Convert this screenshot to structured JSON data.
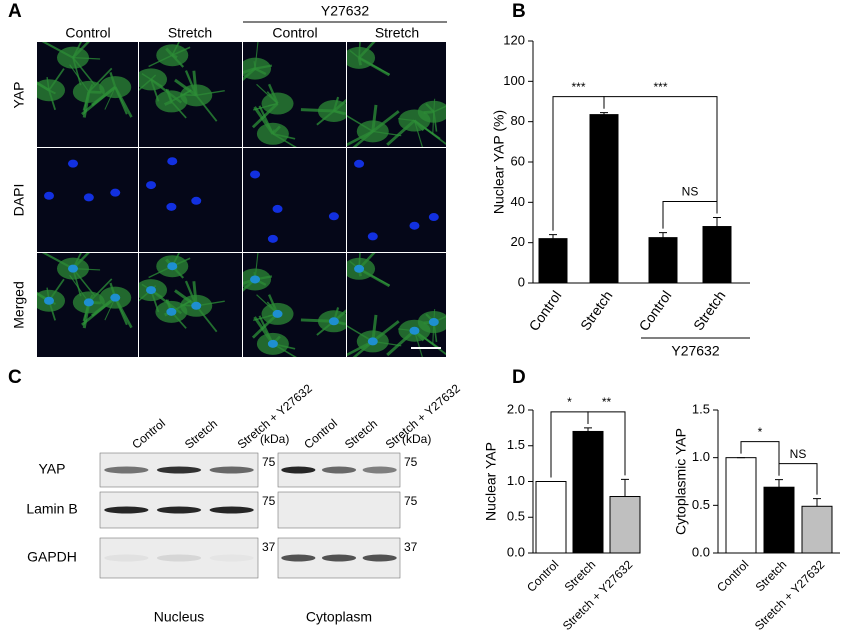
{
  "figure": {
    "panel_letters": [
      "A",
      "B",
      "C",
      "D"
    ],
    "panel_a": {
      "columns": [
        "Control",
        "Stretch",
        "Control",
        "Stretch"
      ],
      "group": "Y27632",
      "rows": [
        "YAP",
        "DAPI",
        "Merged"
      ]
    },
    "panel_c": {
      "proteins": [
        "YAP",
        "Lamin B",
        "GAPDH"
      ],
      "unit": "(kDa)",
      "blots": [
        {
          "name": "Nucleus",
          "lanes": [
            "Control",
            "Stretch",
            "Stretch + Y27632"
          ],
          "markers": [
            75,
            75,
            37
          ]
        },
        {
          "name": "Cytoplasm",
          "lanes": [
            "Control",
            "Stretch",
            "Stretch + Y27632"
          ],
          "markers": [
            75,
            75,
            37
          ]
        }
      ]
    }
  },
  "chart_data": [
    {
      "type": "bar",
      "y_label": "Nuclear YAP (%)",
      "categories": [
        "Control",
        "Stretch",
        "Control",
        "Stretch"
      ],
      "values": [
        22,
        83.5,
        22.5,
        28
      ],
      "errors": [
        2,
        1,
        2.5,
        4.5
      ],
      "color": "#000000",
      "ylim": [
        0,
        120
      ],
      "yticks": [
        0,
        20,
        40,
        60,
        80,
        100,
        120
      ],
      "group": {
        "label": "Y27632",
        "from": 2,
        "to": 3
      },
      "annotations": [
        {
          "text": "***",
          "from": 0,
          "to": 1
        },
        {
          "text": "***",
          "from": 1,
          "to": 3
        },
        {
          "text": "NS",
          "from": 2,
          "to": 3
        }
      ]
    },
    {
      "type": "bar",
      "y_label": "Nuclear YAP",
      "categories": [
        "Control",
        "Stretch",
        "Stretch + Y27632"
      ],
      "values": [
        1.0,
        1.7,
        0.79
      ],
      "errors": [
        0,
        0.05,
        0.24
      ],
      "colors": [
        "#ffffff",
        "#000000",
        "#bfbfbf"
      ],
      "ylim": [
        0,
        2.0
      ],
      "yticks": [
        {
          "value": 0,
          "label": "0.0"
        },
        0.5,
        {
          "value": 1,
          "label": "1.0"
        },
        1.5,
        {
          "value": 2,
          "label": "2.0"
        }
      ],
      "annotations": [
        {
          "text": "*",
          "from": 0,
          "to": 1
        },
        {
          "text": "**",
          "from": 1,
          "to": 2
        }
      ]
    },
    {
      "type": "bar",
      "y_label": "Cytoplasmic YAP",
      "categories": [
        "Control",
        "Stretch",
        "Stretch + Y27632"
      ],
      "values": [
        1.0,
        0.69,
        0.49
      ],
      "errors": [
        0,
        0.08,
        0.08
      ],
      "colors": [
        "#ffffff",
        "#000000",
        "#bfbfbf"
      ],
      "ylim": [
        0,
        1.5
      ],
      "yticks": [
        {
          "value": 0,
          "label": "0.0"
        },
        0.5,
        {
          "value": 1,
          "label": "1.0"
        },
        1.5
      ],
      "annotations": [
        {
          "text": "*",
          "from": 0,
          "to": 1
        },
        {
          "text": "NS",
          "from": 1,
          "to": 2
        }
      ]
    }
  ]
}
